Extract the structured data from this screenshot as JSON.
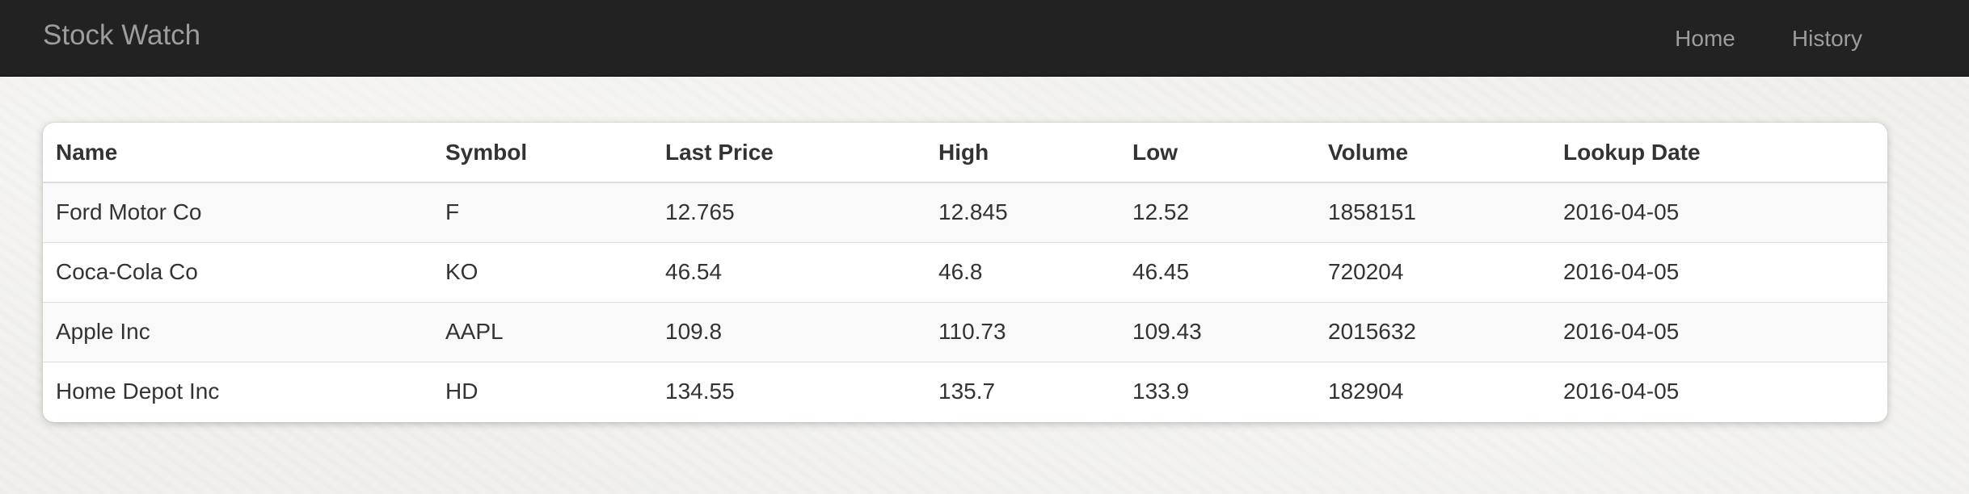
{
  "navbar": {
    "brand": "Stock Watch",
    "links": [
      "Home",
      "History"
    ]
  },
  "table": {
    "headers": [
      "Name",
      "Symbol",
      "Last Price",
      "High",
      "Low",
      "Volume",
      "Lookup Date"
    ],
    "rows": [
      [
        "Ford Motor Co",
        "F",
        "12.765",
        "12.845",
        "12.52",
        "1858151",
        "2016-04-05"
      ],
      [
        "Coca-Cola Co",
        "KO",
        "46.54",
        "46.8",
        "46.45",
        "720204",
        "2016-04-05"
      ],
      [
        "Apple Inc",
        "AAPL",
        "109.8",
        "110.73",
        "109.43",
        "2015632",
        "2016-04-05"
      ],
      [
        "Home Depot Inc",
        "HD",
        "134.55",
        "135.7",
        "133.9",
        "182904",
        "2016-04-05"
      ]
    ]
  },
  "colors": {
    "navbar_bg": "#222222",
    "nav_text": "#9d9d9d",
    "page_bg": "#f1f0ec",
    "row_stripe": "#f9f9f9"
  }
}
